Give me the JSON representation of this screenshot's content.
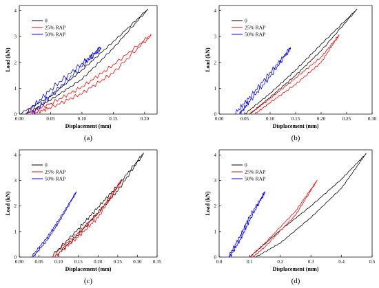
{
  "colors": {
    "series_0": "#000000",
    "series_25": "#ff0000",
    "series_50": "#0000ff",
    "axis": "#000000",
    "background": "#ffffff"
  },
  "chart_data": [
    {
      "type": "line",
      "panel_label": "(a)",
      "xlabel": "Displacement (mm)",
      "ylabel": "Load (kN)",
      "xlim": [
        0,
        0.22
      ],
      "ylim": [
        0,
        4.2
      ],
      "xticks": [
        "0.00",
        "0.05",
        "0.10",
        "0.15",
        "0.20"
      ],
      "yticks": [
        "0",
        "1",
        "2",
        "3",
        "4"
      ],
      "legend_position": "top-left",
      "grid": false,
      "series": [
        {
          "name": "0",
          "color": "#000000",
          "loading": [
            [
              0.0,
              0.0
            ],
            [
              0.05,
              0.7
            ],
            [
              0.1,
              1.7
            ],
            [
              0.15,
              2.8
            ],
            [
              0.205,
              4.05
            ]
          ],
          "unloading": [
            [
              0.205,
              4.05
            ],
            [
              0.15,
              2.55
            ],
            [
              0.1,
              1.35
            ],
            [
              0.05,
              0.55
            ],
            [
              0.01,
              0.0
            ]
          ],
          "oscillation": 0.04
        },
        {
          "name": "25% RAP",
          "color": "#ff0000",
          "loading": [
            [
              0.01,
              0.0
            ],
            [
              0.05,
              0.4
            ],
            [
              0.1,
              1.05
            ],
            [
              0.15,
              1.9
            ],
            [
              0.21,
              3.05
            ]
          ],
          "unloading": [
            [
              0.21,
              3.05
            ],
            [
              0.15,
              1.6
            ],
            [
              0.1,
              0.8
            ],
            [
              0.05,
              0.25
            ],
            [
              0.02,
              0.0
            ]
          ],
          "oscillation": 0.08
        },
        {
          "name": "50% RAP",
          "color": "#0000ff",
          "loading": [
            [
              0.01,
              0.0
            ],
            [
              0.05,
              0.95
            ],
            [
              0.1,
              1.95
            ],
            [
              0.13,
              2.55
            ]
          ],
          "unloading": [
            [
              0.13,
              2.55
            ],
            [
              0.1,
              1.85
            ],
            [
              0.05,
              0.7
            ],
            [
              0.02,
              0.0
            ]
          ],
          "oscillation": 0.12
        }
      ]
    },
    {
      "type": "line",
      "panel_label": "(b)",
      "xlabel": "Displacement (mm)",
      "ylabel": "Load (kN)",
      "xlim": [
        0,
        0.3
      ],
      "ylim": [
        0,
        4.2
      ],
      "xticks": [
        "0.00",
        "0.05",
        "0.10",
        "0.15",
        "0.20",
        "0.25",
        "0.30"
      ],
      "yticks": [
        "0",
        "1",
        "2",
        "3",
        "4"
      ],
      "legend_position": "top-left",
      "grid": false,
      "series": [
        {
          "name": "0",
          "color": "#000000",
          "loading": [
            [
              0.05,
              0.0
            ],
            [
              0.1,
              0.8
            ],
            [
              0.15,
              1.7
            ],
            [
              0.2,
              2.7
            ],
            [
              0.27,
              4.05
            ]
          ],
          "unloading": [
            [
              0.27,
              4.05
            ],
            [
              0.2,
              2.45
            ],
            [
              0.15,
              1.5
            ],
            [
              0.1,
              0.65
            ],
            [
              0.06,
              0.0
            ]
          ],
          "oscillation": 0.03
        },
        {
          "name": "25% RAP",
          "color": "#ff0000",
          "loading": [
            [
              0.06,
              0.0
            ],
            [
              0.1,
              0.6
            ],
            [
              0.15,
              1.4
            ],
            [
              0.2,
              2.2
            ],
            [
              0.235,
              3.05
            ]
          ],
          "unloading": [
            [
              0.235,
              3.05
            ],
            [
              0.2,
              2.0
            ],
            [
              0.15,
              1.15
            ],
            [
              0.1,
              0.45
            ],
            [
              0.07,
              0.0
            ]
          ],
          "oscillation": 0.04
        },
        {
          "name": "50% RAP",
          "color": "#0000ff",
          "loading": [
            [
              0.03,
              0.0
            ],
            [
              0.06,
              0.65
            ],
            [
              0.1,
              1.6
            ],
            [
              0.14,
              2.55
            ]
          ],
          "unloading": [
            [
              0.14,
              2.55
            ],
            [
              0.1,
              1.45
            ],
            [
              0.06,
              0.5
            ],
            [
              0.04,
              0.0
            ]
          ],
          "oscillation": 0.1
        }
      ]
    },
    {
      "type": "line",
      "panel_label": "(c)",
      "xlabel": "Displacement (mm)",
      "ylabel": "Load (kN)",
      "xlim": [
        0,
        0.35
      ],
      "ylim": [
        0,
        4.2
      ],
      "xticks": [
        "0.00",
        "0.05",
        "0.10",
        "0.15",
        "0.20",
        "0.25",
        "0.30",
        "0.35"
      ],
      "yticks": [
        "0",
        "1",
        "2",
        "3",
        "4"
      ],
      "legend_position": "top-left",
      "grid": false,
      "series": [
        {
          "name": "0",
          "color": "#000000",
          "loading": [
            [
              0.08,
              0.0
            ],
            [
              0.15,
              1.1
            ],
            [
              0.2,
              1.95
            ],
            [
              0.25,
              2.8
            ],
            [
              0.315,
              4.05
            ]
          ],
          "unloading": [
            [
              0.315,
              4.05
            ],
            [
              0.25,
              2.6
            ],
            [
              0.2,
              1.75
            ],
            [
              0.15,
              0.9
            ],
            [
              0.09,
              0.0
            ]
          ],
          "oscillation": 0.07
        },
        {
          "name": "25% RAP",
          "color": "#ff0000",
          "loading": [
            [
              0.08,
              0.0
            ],
            [
              0.15,
              0.95
            ],
            [
              0.2,
              1.7
            ],
            [
              0.26,
              3.0
            ]
          ],
          "unloading": [
            [
              0.26,
              3.0
            ],
            [
              0.2,
              1.55
            ],
            [
              0.15,
              0.8
            ],
            [
              0.09,
              0.0
            ]
          ],
          "oscillation": 0.08
        },
        {
          "name": "50% RAP",
          "color": "#0000ff",
          "loading": [
            [
              0.03,
              0.0
            ],
            [
              0.07,
              0.75
            ],
            [
              0.1,
              1.45
            ],
            [
              0.145,
              2.55
            ]
          ],
          "unloading": [
            [
              0.145,
              2.55
            ],
            [
              0.1,
              1.35
            ],
            [
              0.07,
              0.65
            ],
            [
              0.035,
              0.0
            ]
          ],
          "oscillation": 0.05
        }
      ]
    },
    {
      "type": "line",
      "panel_label": "(d)",
      "xlabel": "Displacement (mm)",
      "ylabel": "Load (kN)",
      "xlim": [
        0,
        0.5
      ],
      "ylim": [
        0,
        4.2
      ],
      "xticks": [
        "0.0",
        "0.1",
        "0.2",
        "0.3",
        "0.4",
        "0.5"
      ],
      "yticks": [
        "0",
        "1",
        "2",
        "3",
        "4"
      ],
      "legend_position": "top-left",
      "grid": false,
      "series": [
        {
          "name": "0",
          "color": "#000000",
          "loading": [
            [
              0.1,
              0.0
            ],
            [
              0.2,
              1.05
            ],
            [
              0.3,
              2.0
            ],
            [
              0.4,
              3.05
            ],
            [
              0.48,
              4.05
            ]
          ],
          "unloading": [
            [
              0.48,
              4.05
            ],
            [
              0.4,
              2.7
            ],
            [
              0.3,
              1.55
            ],
            [
              0.2,
              0.55
            ],
            [
              0.12,
              0.0
            ]
          ],
          "oscillation": 0.02
        },
        {
          "name": "25% RAP",
          "color": "#ff0000",
          "loading": [
            [
              0.1,
              0.0
            ],
            [
              0.15,
              0.55
            ],
            [
              0.25,
              1.8
            ],
            [
              0.32,
              3.0
            ]
          ],
          "unloading": [
            [
              0.32,
              3.0
            ],
            [
              0.25,
              1.65
            ],
            [
              0.15,
              0.4
            ],
            [
              0.11,
              0.0
            ]
          ],
          "oscillation": 0.03
        },
        {
          "name": "50% RAP",
          "color": "#0000ff",
          "loading": [
            [
              0.03,
              0.0
            ],
            [
              0.07,
              0.85
            ],
            [
              0.1,
              1.6
            ],
            [
              0.15,
              2.55
            ]
          ],
          "unloading": [
            [
              0.15,
              2.55
            ],
            [
              0.1,
              1.45
            ],
            [
              0.07,
              0.7
            ],
            [
              0.035,
              0.0
            ]
          ],
          "oscillation": 0.08
        }
      ]
    }
  ]
}
